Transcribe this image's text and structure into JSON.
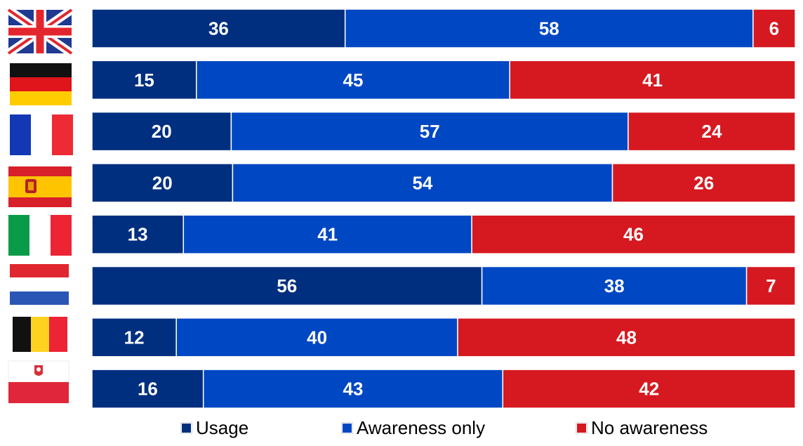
{
  "chart_data": {
    "type": "bar",
    "orientation": "horizontal",
    "stacked": true,
    "categories": [
      "united-kingdom-flag",
      "germany-flag",
      "france-flag",
      "spain-flag",
      "italy-flag",
      "netherlands-flag",
      "belgium-flag",
      "poland-flag"
    ],
    "series": [
      {
        "name": "Usage",
        "color": "#002f7f",
        "values": [
          36,
          15,
          20,
          20,
          13,
          56,
          12,
          16
        ]
      },
      {
        "name": "Awareness only",
        "color": "#0047c3",
        "values": [
          58,
          45,
          57,
          54,
          41,
          38,
          40,
          43
        ]
      },
      {
        "name": "No awareness",
        "color": "#d61920",
        "values": [
          6,
          41,
          24,
          26,
          46,
          7,
          48,
          42
        ]
      }
    ],
    "legend_position": "bottom",
    "grid": false
  }
}
